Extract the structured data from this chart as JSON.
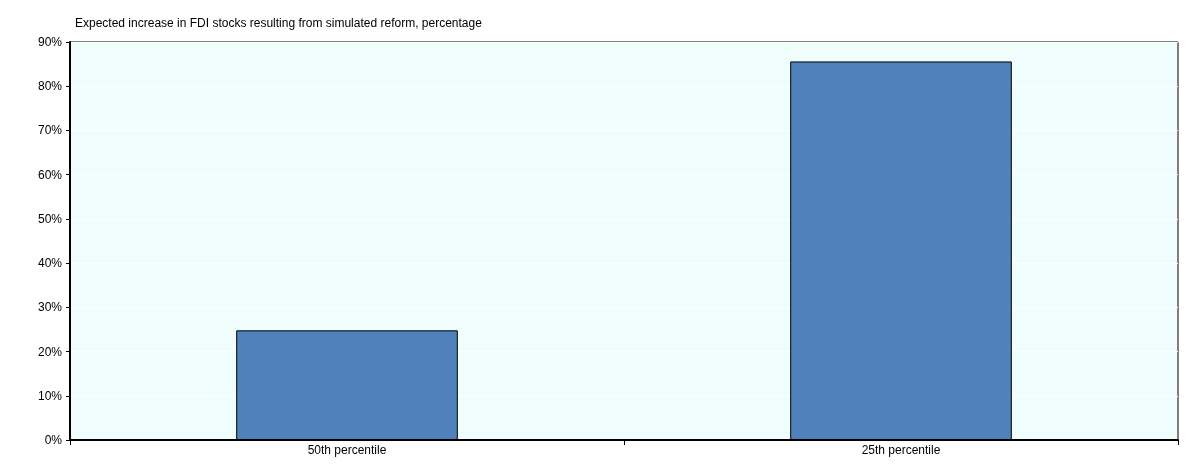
{
  "chart_data": {
    "type": "bar",
    "title": "Expected increase in FDI stocks resulting from simulated reform, percentage",
    "categories": [
      "50th percentile",
      "25th percentile"
    ],
    "values": [
      24.8,
      85.6
    ],
    "color": "#4f81bd",
    "ylim": [
      0,
      90
    ],
    "yticks": [
      {
        "value": 0,
        "label": "0%"
      },
      {
        "value": 10,
        "label": "10%"
      },
      {
        "value": 20,
        "label": "20%"
      },
      {
        "value": 30,
        "label": "30%"
      },
      {
        "value": 40,
        "label": "40%"
      },
      {
        "value": 50,
        "label": "50%"
      },
      {
        "value": 60,
        "label": "60%"
      },
      {
        "value": 70,
        "label": "70%"
      },
      {
        "value": 80,
        "label": "80%"
      },
      {
        "value": 90,
        "label": "90%"
      }
    ],
    "grid": "y"
  }
}
